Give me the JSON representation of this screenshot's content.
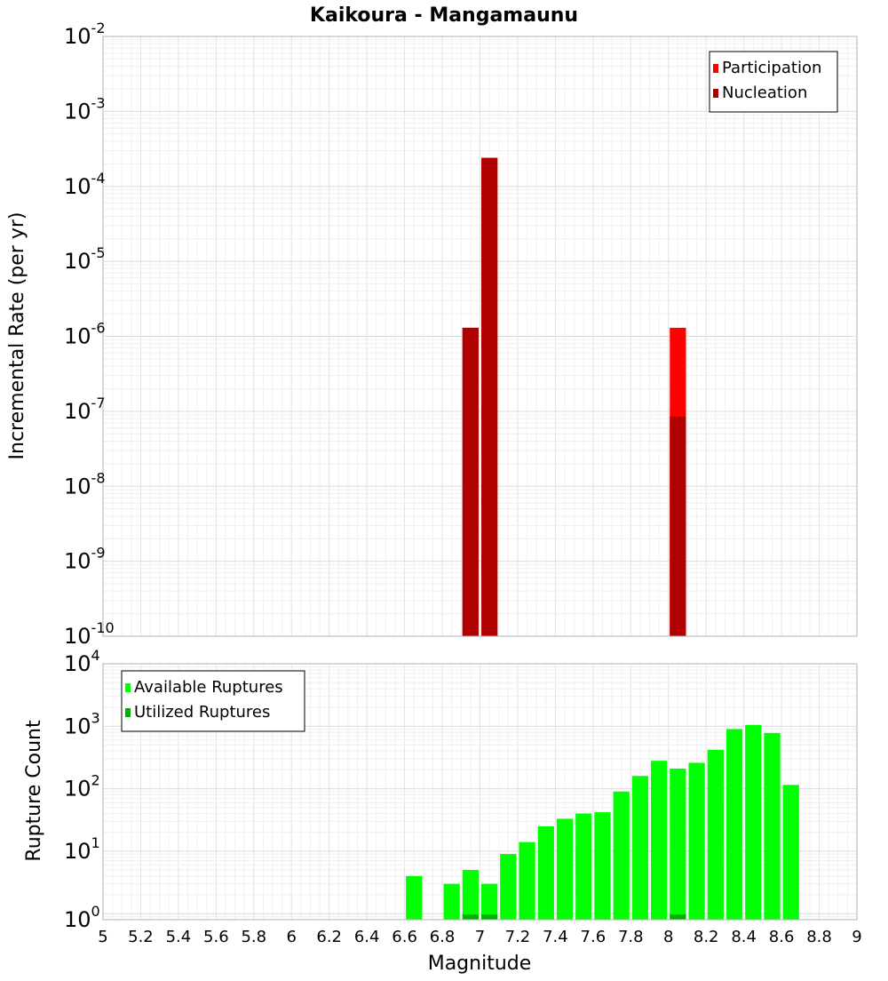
{
  "chart_data": [
    {
      "type": "bar",
      "title": "Kaikoura - Mangamaunu",
      "ylabel": "Incremental Rate (per yr)",
      "xlabel": "",
      "xlim": [
        5,
        9
      ],
      "ylim": [
        1e-10,
        0.01
      ],
      "yscale": "log",
      "ytick_exponents": [
        "-10",
        "-9",
        "-8",
        "-7",
        "-6",
        "-5",
        "-4",
        "-3",
        "-2"
      ],
      "bar_width": 0.1,
      "grid": true,
      "legend_position": "top-right",
      "series": [
        {
          "name": "Participation",
          "color": "#ff0000",
          "x": [
            6.95,
            7.05,
            8.05
          ],
          "values": [
            1.3e-06,
            0.00024,
            1.3e-06
          ]
        },
        {
          "name": "Nucleation",
          "color": "#b00000",
          "x": [
            6.95,
            7.05,
            8.05
          ],
          "values": [
            1.3e-06,
            0.00024,
            8.5e-08
          ]
        }
      ]
    },
    {
      "type": "bar",
      "ylabel": "Rupture Count",
      "xlabel": "Magnitude",
      "xlim": [
        5,
        9
      ],
      "ylim": [
        0.8,
        10000
      ],
      "yscale": "log",
      "ytick_exponents": [
        "0",
        "1",
        "2",
        "3",
        "4"
      ],
      "bar_width": 0.1,
      "grid": true,
      "legend_position": "top-left",
      "xticks": [
        "5",
        "5.2",
        "5.4",
        "5.6",
        "5.8",
        "6",
        "6.2",
        "6.4",
        "6.6",
        "6.8",
        "7",
        "7.2",
        "7.4",
        "7.6",
        "7.8",
        "8",
        "8.2",
        "8.4",
        "8.6",
        "8.8",
        "9"
      ],
      "series": [
        {
          "name": "Available Ruptures",
          "color": "#00ff00",
          "x": [
            6.65,
            6.85,
            6.95,
            7.05,
            7.15,
            7.25,
            7.35,
            7.45,
            7.55,
            7.65,
            7.75,
            7.85,
            7.95,
            8.05,
            8.15,
            8.25,
            8.35,
            8.45,
            8.55,
            8.65
          ],
          "values": [
            4,
            3,
            5,
            3,
            9,
            14,
            25,
            33,
            40,
            42,
            90,
            160,
            280,
            210,
            260,
            420,
            900,
            1050,
            780,
            115
          ]
        },
        {
          "name": "Utilized Ruptures",
          "color": "#00b000",
          "x": [
            6.95,
            7.05,
            8.05
          ],
          "values": [
            1,
            1,
            1
          ]
        }
      ]
    }
  ]
}
